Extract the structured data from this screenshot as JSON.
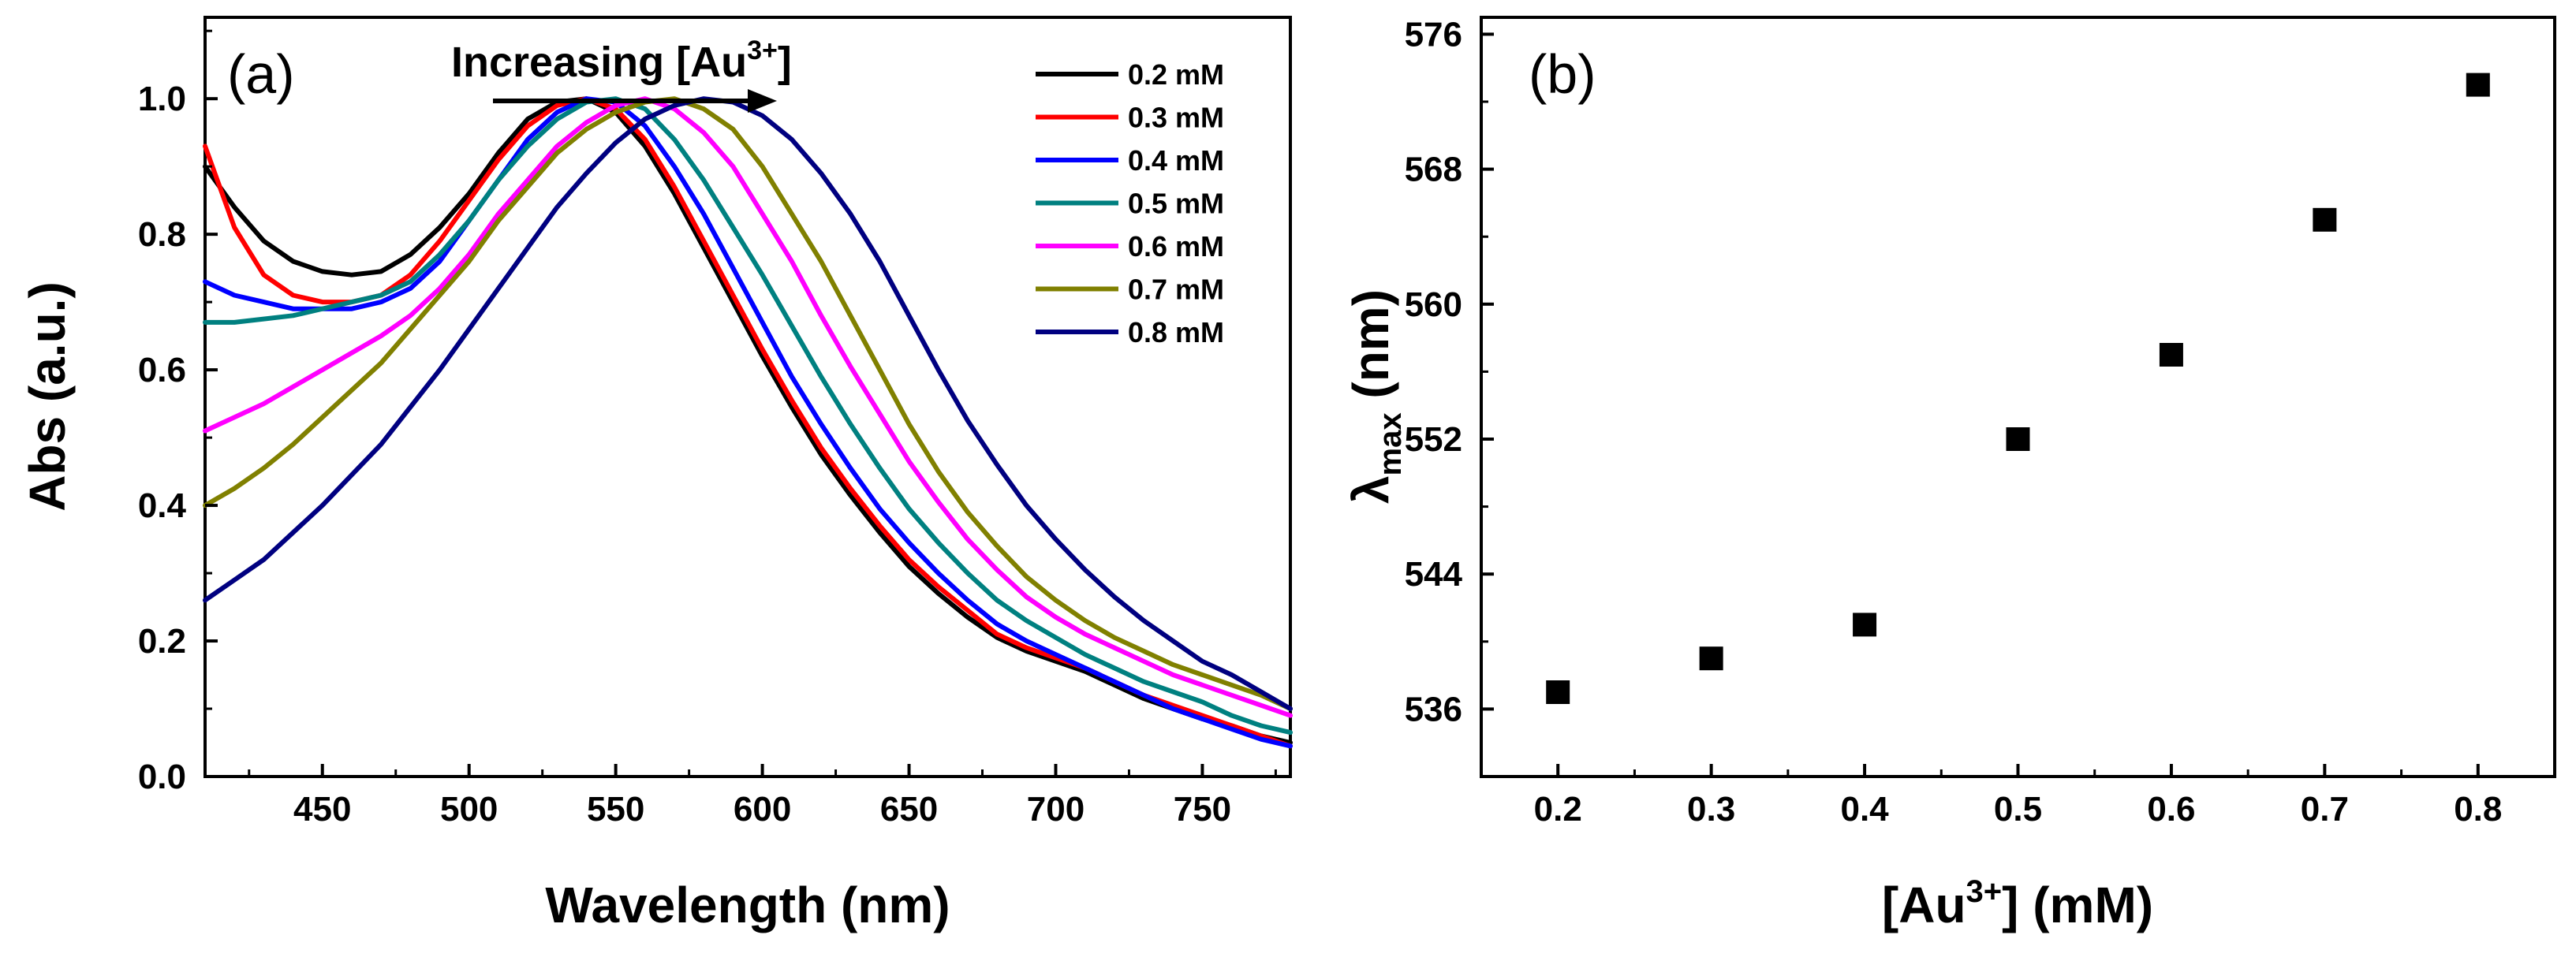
{
  "colors": {
    "0.2 mM": "#000000",
    "0.3 mM": "#ff0000",
    "0.4 mM": "#0000ff",
    "0.5 mM": "#008080",
    "0.6 mM": "#ff00ff",
    "0.7 mM": "#808000",
    "0.8 mM": "#000080"
  },
  "chart_data": [
    {
      "type": "line",
      "panel_label": "(a)",
      "xlabel": "Wavelength (nm)",
      "ylabel": "Abs (a.u.)",
      "xlim": [
        410,
        780
      ],
      "ylim": [
        0.0,
        1.12
      ],
      "xticks": [
        "450",
        "500",
        "550",
        "600",
        "650",
        "700",
        "750"
      ],
      "yticks": [
        "0.0",
        "0.2",
        "0.4",
        "0.6",
        "0.8",
        "1.0"
      ],
      "annotation": {
        "text": "Increasing [Au",
        "sup": "3+",
        "close": "]"
      },
      "legend_position": "top-right",
      "x": [
        410,
        420,
        430,
        440,
        450,
        460,
        470,
        480,
        490,
        500,
        510,
        520,
        530,
        540,
        550,
        560,
        570,
        580,
        590,
        600,
        610,
        620,
        630,
        640,
        650,
        660,
        670,
        680,
        690,
        700,
        710,
        720,
        730,
        740,
        750,
        760,
        770,
        780
      ],
      "series": [
        {
          "name": "0.2 mM",
          "values": [
            0.9,
            0.84,
            0.79,
            0.76,
            0.745,
            0.74,
            0.745,
            0.77,
            0.81,
            0.86,
            0.92,
            0.97,
            0.995,
            1.0,
            0.98,
            0.93,
            0.86,
            0.78,
            0.7,
            0.62,
            0.545,
            0.475,
            0.415,
            0.36,
            0.31,
            0.27,
            0.235,
            0.205,
            0.185,
            0.17,
            0.155,
            0.135,
            0.115,
            0.1,
            0.085,
            0.075,
            0.06,
            0.05
          ]
        },
        {
          "name": "0.3 mM",
          "values": [
            0.93,
            0.81,
            0.74,
            0.71,
            0.7,
            0.7,
            0.71,
            0.74,
            0.79,
            0.85,
            0.91,
            0.96,
            0.99,
            1.0,
            0.985,
            0.94,
            0.87,
            0.79,
            0.71,
            0.63,
            0.555,
            0.485,
            0.425,
            0.37,
            0.32,
            0.28,
            0.245,
            0.21,
            0.19,
            0.175,
            0.16,
            0.14,
            0.12,
            0.105,
            0.09,
            0.075,
            0.06,
            0.045
          ]
        },
        {
          "name": "0.4 mM",
          "values": [
            0.73,
            0.71,
            0.7,
            0.69,
            0.69,
            0.69,
            0.7,
            0.72,
            0.76,
            0.82,
            0.88,
            0.94,
            0.98,
            1.0,
            0.995,
            0.96,
            0.9,
            0.83,
            0.75,
            0.67,
            0.59,
            0.52,
            0.455,
            0.395,
            0.345,
            0.3,
            0.26,
            0.225,
            0.2,
            0.18,
            0.16,
            0.14,
            0.12,
            0.1,
            0.085,
            0.07,
            0.055,
            0.045
          ]
        },
        {
          "name": "0.5 mM",
          "values": [
            0.67,
            0.67,
            0.675,
            0.68,
            0.69,
            0.7,
            0.71,
            0.73,
            0.77,
            0.82,
            0.88,
            0.93,
            0.97,
            0.995,
            1.0,
            0.985,
            0.94,
            0.88,
            0.81,
            0.74,
            0.665,
            0.59,
            0.52,
            0.455,
            0.395,
            0.345,
            0.3,
            0.26,
            0.23,
            0.205,
            0.18,
            0.16,
            0.14,
            0.125,
            0.11,
            0.09,
            0.075,
            0.065
          ]
        },
        {
          "name": "0.6 mM",
          "values": [
            0.51,
            0.53,
            0.55,
            0.575,
            0.6,
            0.625,
            0.65,
            0.68,
            0.72,
            0.77,
            0.83,
            0.88,
            0.93,
            0.965,
            0.99,
            1.0,
            0.985,
            0.95,
            0.9,
            0.83,
            0.76,
            0.68,
            0.605,
            0.535,
            0.465,
            0.405,
            0.35,
            0.305,
            0.265,
            0.235,
            0.21,
            0.19,
            0.17,
            0.15,
            0.135,
            0.12,
            0.105,
            0.09
          ]
        },
        {
          "name": "0.7 mM",
          "values": [
            0.4,
            0.425,
            0.455,
            0.49,
            0.53,
            0.57,
            0.61,
            0.66,
            0.71,
            0.76,
            0.82,
            0.87,
            0.92,
            0.955,
            0.98,
            0.995,
            1.0,
            0.985,
            0.955,
            0.9,
            0.83,
            0.76,
            0.68,
            0.6,
            0.52,
            0.45,
            0.39,
            0.34,
            0.295,
            0.26,
            0.23,
            0.205,
            0.185,
            0.165,
            0.15,
            0.135,
            0.12,
            0.1
          ]
        },
        {
          "name": "0.8 mM",
          "values": [
            0.26,
            0.29,
            0.32,
            0.36,
            0.4,
            0.445,
            0.49,
            0.545,
            0.6,
            0.66,
            0.72,
            0.78,
            0.84,
            0.89,
            0.935,
            0.97,
            0.99,
            1.0,
            0.995,
            0.975,
            0.94,
            0.89,
            0.83,
            0.76,
            0.68,
            0.6,
            0.525,
            0.46,
            0.4,
            0.35,
            0.305,
            0.265,
            0.23,
            0.2,
            0.17,
            0.15,
            0.125,
            0.1
          ]
        }
      ]
    },
    {
      "type": "scatter",
      "panel_label": "(b)",
      "xlabel_parts": {
        "pre": "[Au",
        "sup": "3+",
        "post": "] (mM)"
      },
      "ylabel_parts": {
        "main": "λ",
        "sub": "max",
        "post": " (nm)"
      },
      "xlim": [
        0.15,
        0.85
      ],
      "ylim": [
        532,
        577
      ],
      "xticks": [
        "0.2",
        "0.3",
        "0.4",
        "0.5",
        "0.6",
        "0.7",
        "0.8"
      ],
      "yticks": [
        "536",
        "544",
        "552",
        "560",
        "568",
        "576"
      ],
      "x": [
        0.2,
        0.3,
        0.4,
        0.5,
        0.6,
        0.7,
        0.8
      ],
      "y": [
        537.0,
        539.0,
        541.0,
        552.0,
        557.0,
        565.0,
        573.0
      ]
    }
  ]
}
